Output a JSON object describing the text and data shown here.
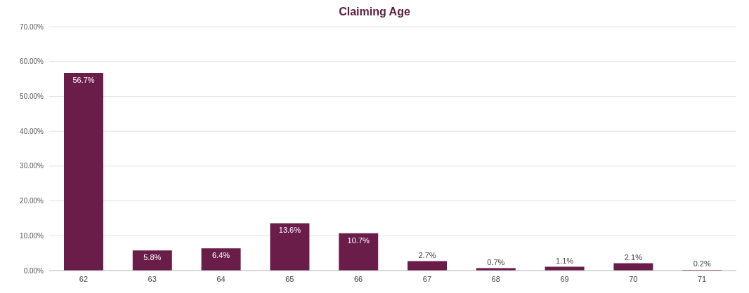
{
  "chart_data": {
    "type": "bar",
    "title": "Claiming Age",
    "categories": [
      "62",
      "63",
      "64",
      "65",
      "66",
      "67",
      "68",
      "69",
      "70",
      "71"
    ],
    "values": [
      56.7,
      5.8,
      6.4,
      13.6,
      10.7,
      2.7,
      0.7,
      1.1,
      2.1,
      0.2
    ],
    "value_labels": [
      "56.7%",
      "5.8%",
      "6.4%",
      "13.6%",
      "10.7%",
      "2.7%",
      "0.7%",
      "1.1%",
      "2.1%",
      "0.2%"
    ],
    "color": "#6b1d4a",
    "ylim": [
      0,
      70
    ],
    "yticks": [
      {
        "value": 0,
        "label": "0.00%"
      },
      {
        "value": 10,
        "label": "10.00%"
      },
      {
        "value": 20,
        "label": "20.00%"
      },
      {
        "value": 30,
        "label": "30.00%"
      },
      {
        "value": 40,
        "label": "40.00%"
      },
      {
        "value": 50,
        "label": "50.00%"
      },
      {
        "value": 60,
        "label": "60.00%"
      },
      {
        "value": 70,
        "label": "70.00%"
      }
    ],
    "grid": "y",
    "legend": false
  }
}
